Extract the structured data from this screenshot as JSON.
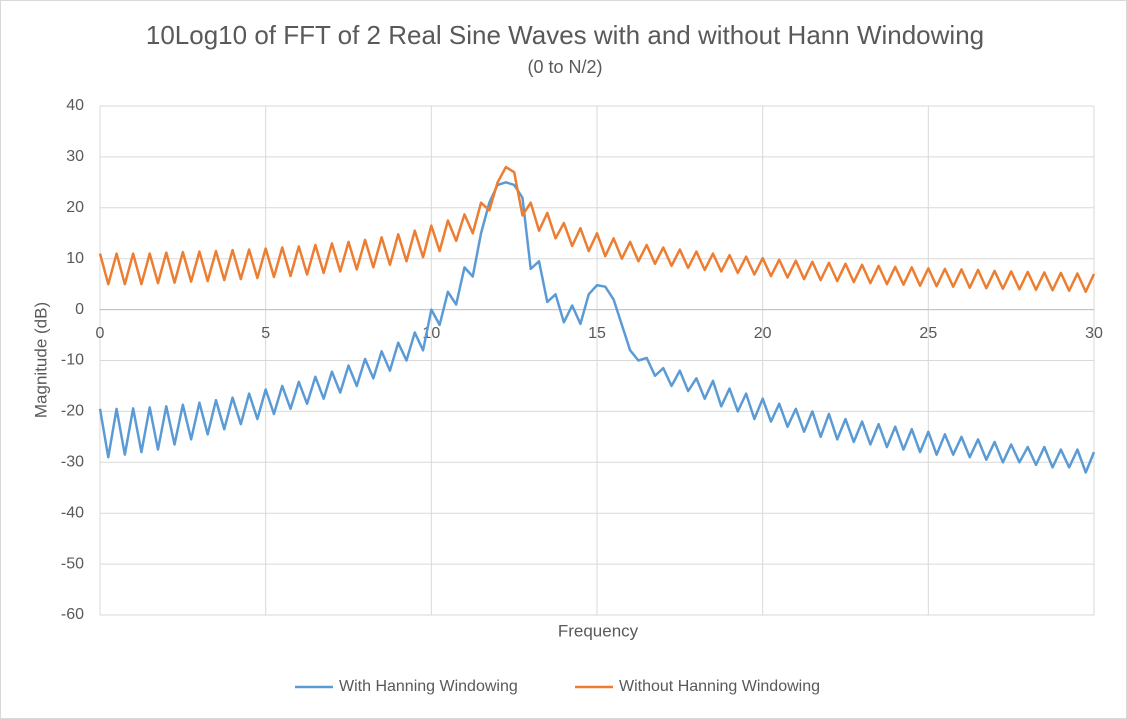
{
  "chart_data": {
    "type": "line",
    "title": "10Log10 of FFT of 2 Real Sine Waves with and without Hann Windowing",
    "subtitle": "(0 to N/2)",
    "x_label": "Frequency",
    "y_label": "Magnitude (dB)",
    "xlim": [
      0,
      30
    ],
    "xticks": [
      0,
      5,
      10,
      15,
      20,
      25,
      30
    ],
    "ylim": [
      -60,
      40
    ],
    "yticks": [
      -60,
      -50,
      -40,
      -30,
      -20,
      -10,
      0,
      10,
      20,
      30,
      40
    ],
    "grid": true,
    "legend": "bottom",
    "x": [
      0,
      0.25,
      0.5,
      0.75,
      1,
      1.25,
      1.5,
      1.75,
      2,
      2.25,
      2.5,
      2.75,
      3,
      3.25,
      3.5,
      3.75,
      4,
      4.25,
      4.5,
      4.75,
      5,
      5.25,
      5.5,
      5.75,
      6,
      6.25,
      6.5,
      6.75,
      7,
      7.25,
      7.5,
      7.75,
      8,
      8.25,
      8.5,
      8.75,
      9,
      9.25,
      9.5,
      9.75,
      10,
      10.25,
      10.5,
      10.75,
      11,
      11.25,
      11.5,
      11.75,
      12,
      12.25,
      12.5,
      12.75,
      13,
      13.25,
      13.5,
      13.75,
      14,
      14.25,
      14.5,
      14.75,
      15,
      15.25,
      15.5,
      15.75,
      16,
      16.25,
      16.5,
      16.75,
      17,
      17.25,
      17.5,
      17.75,
      18,
      18.25,
      18.5,
      18.75,
      19,
      19.25,
      19.5,
      19.75,
      20,
      20.25,
      20.5,
      20.75,
      21,
      21.25,
      21.5,
      21.75,
      22,
      22.25,
      22.5,
      22.75,
      23,
      23.25,
      23.5,
      23.75,
      24,
      24.25,
      24.5,
      24.75,
      25,
      25.25,
      25.5,
      25.75,
      26,
      26.25,
      26.5,
      26.75,
      27,
      27.25,
      27.5,
      27.75,
      28,
      28.25,
      28.5,
      28.75,
      29,
      29.25,
      29.5,
      29.75,
      30
    ],
    "series": [
      {
        "name": "With Hanning Windowing",
        "color": "#5b9bd5",
        "values": [
          -19.5,
          -29,
          -19.5,
          -28.5,
          -19.4,
          -28,
          -19.2,
          -27.5,
          -19,
          -26.5,
          -18.7,
          -25.5,
          -18.3,
          -24.5,
          -17.8,
          -23.5,
          -17.3,
          -22.5,
          -16.5,
          -21.5,
          -15.7,
          -20.5,
          -15,
          -19.5,
          -14.2,
          -18.5,
          -13.2,
          -17.5,
          -12.2,
          -16.3,
          -11,
          -15,
          -9.7,
          -13.5,
          -8.2,
          -12,
          -6.5,
          -10,
          -4.5,
          -8,
          0,
          -3,
          3.5,
          1,
          8.3,
          6.5,
          15,
          21,
          24.5,
          25,
          24.5,
          22,
          8,
          9.5,
          1.5,
          3,
          -2.5,
          0.8,
          -2.8,
          3,
          4.8,
          4.5,
          2,
          -3,
          -8,
          -10,
          -9.5,
          -13,
          -11.5,
          -15,
          -12,
          -16,
          -13.5,
          -17.5,
          -14,
          -19,
          -15.5,
          -20,
          -16.5,
          -21.5,
          -17.5,
          -22,
          -18.5,
          -23,
          -19.5,
          -24,
          -20,
          -25,
          -20.5,
          -25.5,
          -21.5,
          -26,
          -22,
          -26.5,
          -22.5,
          -27,
          -23,
          -27.5,
          -23.5,
          -28,
          -24,
          -28.5,
          -24.5,
          -28.5,
          -25,
          -29,
          -25.5,
          -29.5,
          -26,
          -30,
          -26.5,
          -30,
          -27,
          -30.5,
          -27,
          -31,
          -27.5,
          -31,
          -27.5,
          -32,
          -28
        ]
      },
      {
        "name": "Without Hanning Windowing",
        "color": "#ed7d31",
        "values": [
          11,
          5,
          11,
          5,
          11,
          5,
          11,
          5.2,
          11.2,
          5.3,
          11.3,
          5.5,
          11.4,
          5.6,
          11.5,
          5.8,
          11.7,
          6,
          11.8,
          6.2,
          12,
          6.4,
          12.2,
          6.6,
          12.4,
          6.9,
          12.7,
          7.2,
          13,
          7.5,
          13.3,
          7.9,
          13.7,
          8.3,
          14.2,
          8.8,
          14.8,
          9.5,
          15.5,
          10.3,
          16.5,
          11.5,
          17.5,
          13.5,
          18.7,
          15,
          21,
          19.5,
          25,
          28,
          27,
          18.5,
          21,
          15.5,
          19,
          14,
          17,
          12.5,
          16,
          11.5,
          15,
          10.5,
          14,
          10,
          13.3,
          9.5,
          12.7,
          9,
          12.2,
          8.6,
          11.8,
          8.2,
          11.4,
          7.8,
          11,
          7.5,
          10.7,
          7.2,
          10.4,
          6.9,
          10.1,
          6.6,
          9.8,
          6.3,
          9.6,
          6,
          9.4,
          5.8,
          9.2,
          5.6,
          9,
          5.4,
          8.8,
          5.2,
          8.6,
          5,
          8.4,
          4.9,
          8.3,
          4.7,
          8.1,
          4.6,
          8,
          4.5,
          7.9,
          4.3,
          7.8,
          4.2,
          7.6,
          4.1,
          7.5,
          4,
          7.4,
          3.9,
          7.3,
          3.8,
          7.2,
          3.7,
          7.1,
          3.5,
          7
        ]
      }
    ]
  }
}
